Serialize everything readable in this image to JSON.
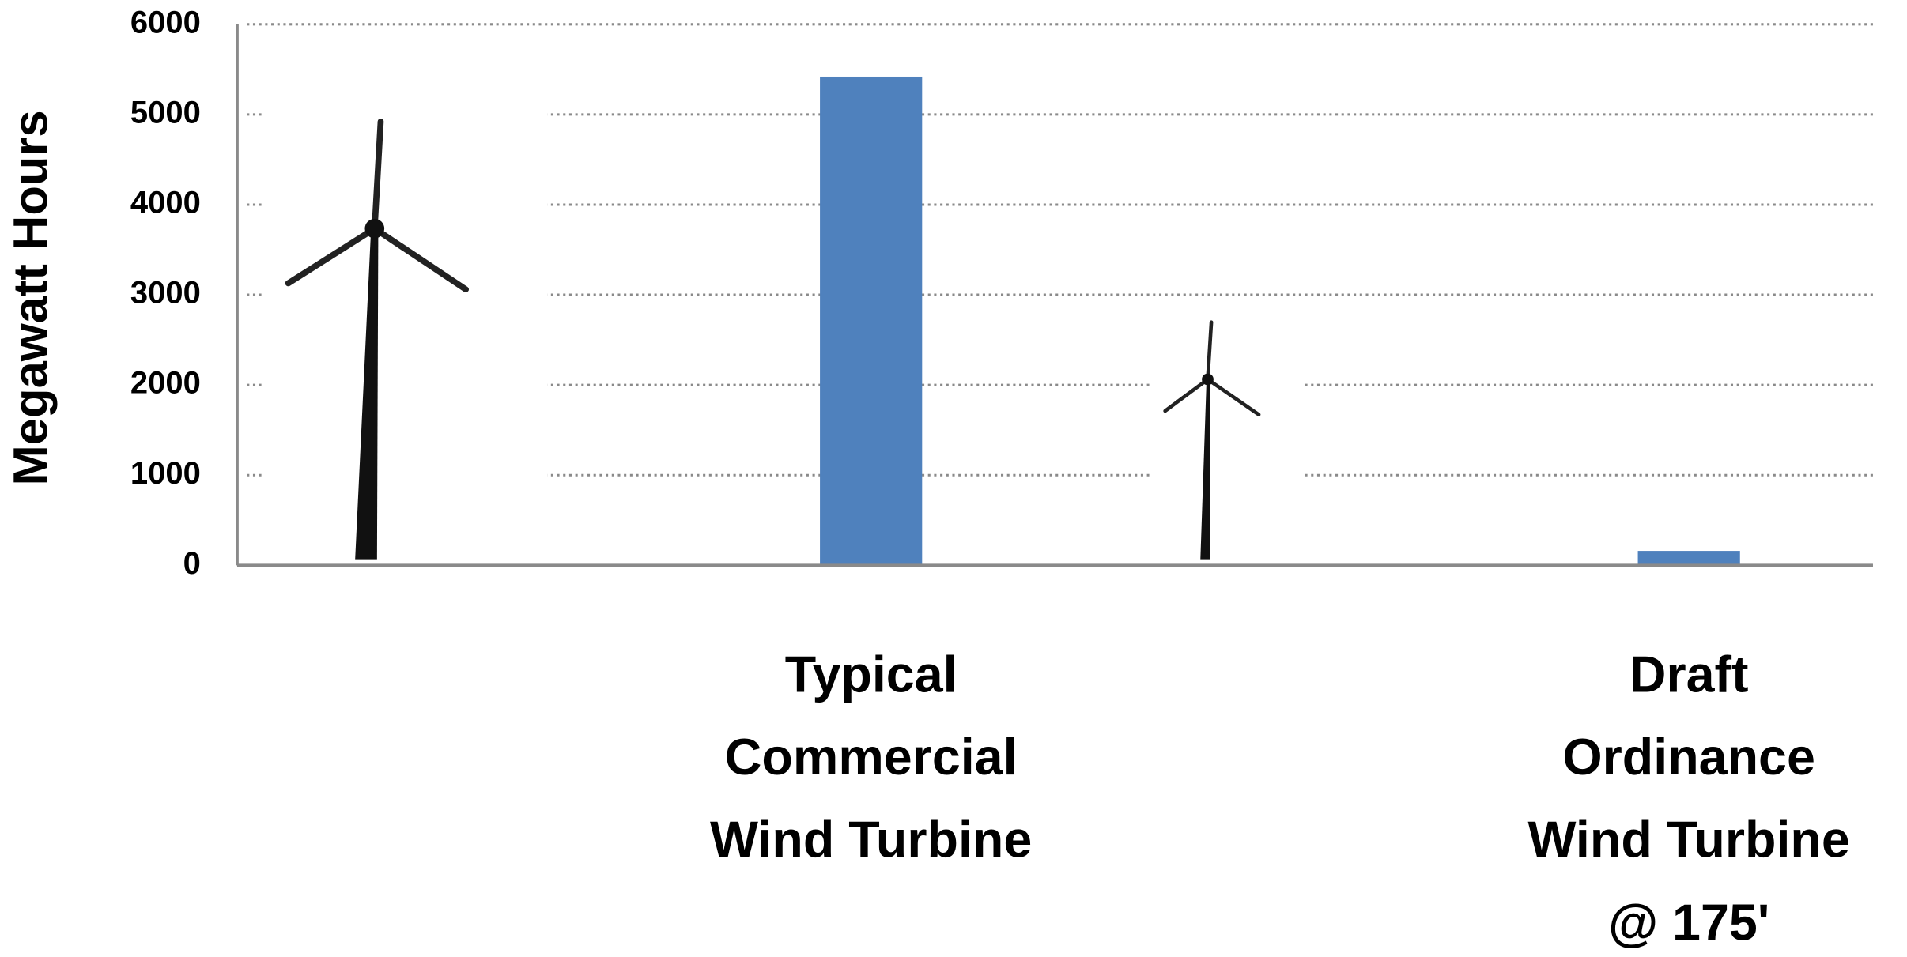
{
  "chart_data": {
    "type": "bar",
    "y_label": "Megawatt Hours",
    "categories": [
      [
        "Typical",
        "Commercial",
        "Wind Turbine"
      ],
      [
        "Draft",
        "Ordinance",
        "Wind Turbine",
        "@ 175'"
      ]
    ],
    "values": [
      5420,
      160
    ],
    "color": "#4f81bd",
    "ylim": [
      0,
      6000
    ],
    "yticks": [
      0,
      1000,
      2000,
      3000,
      4000,
      5000,
      6000
    ],
    "grid": true
  }
}
